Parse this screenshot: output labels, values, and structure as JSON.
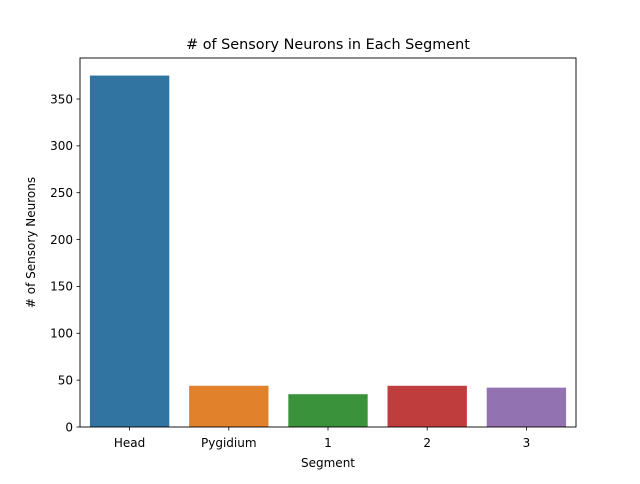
{
  "chart_data": {
    "type": "bar",
    "title": "# of Sensory Neurons in Each Segment",
    "xlabel": "Segment",
    "ylabel": "# of Sensory Neurons",
    "categories": [
      "Head",
      "Pygidium",
      "1",
      "2",
      "3"
    ],
    "values": [
      375,
      44,
      35,
      44,
      42
    ],
    "colors": [
      "#3274a1",
      "#e1812c",
      "#3a923a",
      "#c03d3e",
      "#9372b2"
    ],
    "ylim": [
      0,
      393.75
    ],
    "yticks": [
      0,
      50,
      100,
      150,
      200,
      250,
      300,
      350
    ],
    "grid": false,
    "legend": "none"
  }
}
